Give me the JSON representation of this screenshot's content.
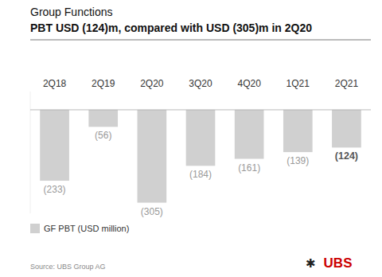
{
  "chart_data": {
    "type": "bar",
    "title": "Group Functions",
    "subtitle": "PBT USD (124)m, compared with USD (305)m in 2Q20",
    "categories": [
      "2Q18",
      "2Q19",
      "2Q20",
      "3Q20",
      "4Q20",
      "1Q21",
      "2Q21"
    ],
    "series": [
      {
        "name": "GF PBT (USD million)",
        "color": "#d0d0d0",
        "values": [
          -233,
          -56,
          -305,
          -184,
          -161,
          -139,
          -124
        ],
        "value_labels": [
          "(233)",
          "(56)",
          "(305)",
          "(184)",
          "(161)",
          "(139)",
          "(124)"
        ]
      }
    ],
    "ylim": [
      -340,
      60
    ],
    "data_labels": true,
    "tick_labels": "x",
    "grid": false,
    "legend": "lower left",
    "annotations": [
      {
        "text": "Source: UBS Group AG"
      },
      {
        "text": "✱"
      },
      {
        "text": "UBS",
        "color": "#cc0000"
      }
    ]
  }
}
